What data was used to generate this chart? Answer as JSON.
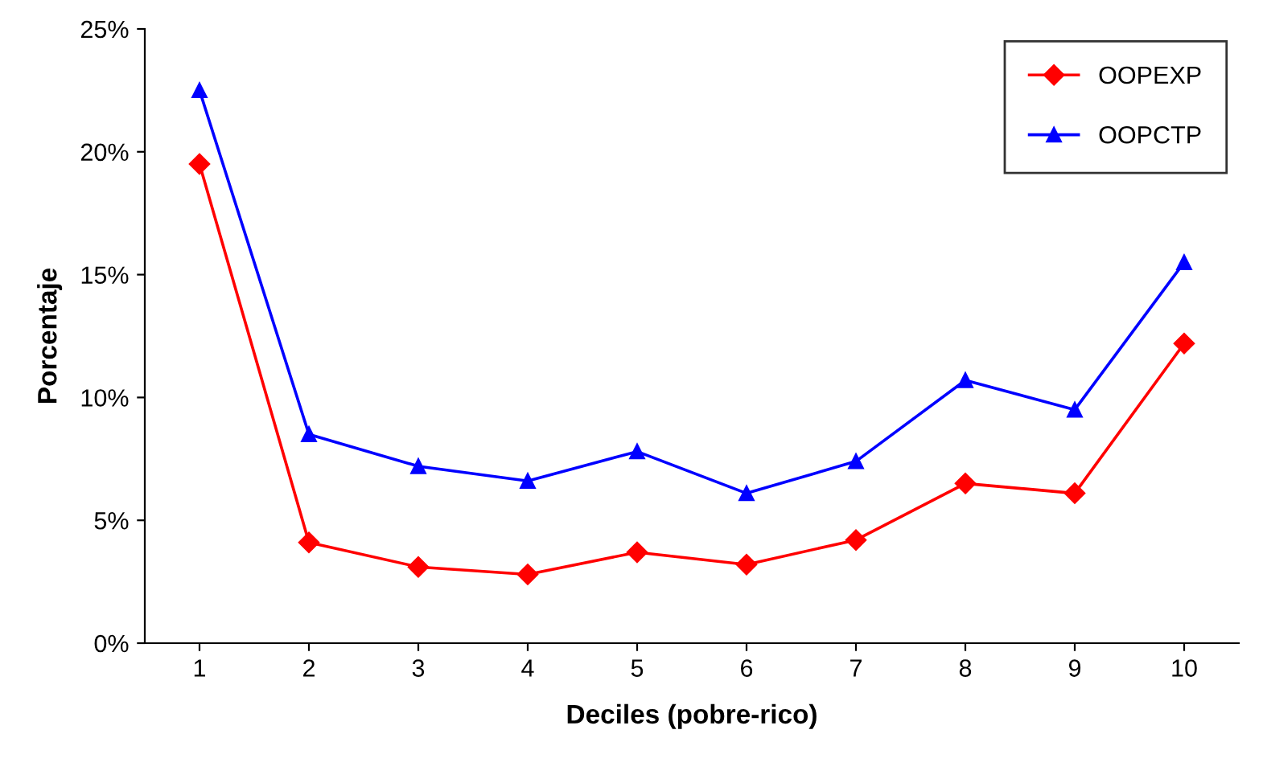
{
  "chart_data": {
    "type": "line",
    "xlabel": "Deciles (pobre-rico)",
    "ylabel": "Porcentaje",
    "categories": [
      "1",
      "2",
      "3",
      "4",
      "5",
      "6",
      "7",
      "8",
      "9",
      "10"
    ],
    "series": [
      {
        "name": "OOPEXP",
        "color": "#ff0000",
        "marker": "diamond",
        "values": [
          19.5,
          4.1,
          3.1,
          2.8,
          3.7,
          3.2,
          4.2,
          6.5,
          6.1,
          12.2
        ]
      },
      {
        "name": "OOPCTP",
        "color": "#0000ff",
        "marker": "triangle",
        "values": [
          22.5,
          8.5,
          7.2,
          6.6,
          7.8,
          6.1,
          7.4,
          10.7,
          9.5,
          15.5
        ]
      }
    ],
    "ylim": [
      0,
      25
    ],
    "yticks": [
      {
        "value": 0,
        "label": "0%"
      },
      {
        "value": 5,
        "label": "5%"
      },
      {
        "value": 10,
        "label": "10%"
      },
      {
        "value": 15,
        "label": "15%"
      },
      {
        "value": 20,
        "label": "20%"
      },
      {
        "value": 25,
        "label": "25%"
      }
    ],
    "grid": false,
    "legend": "top right",
    "line_style": "solid"
  }
}
